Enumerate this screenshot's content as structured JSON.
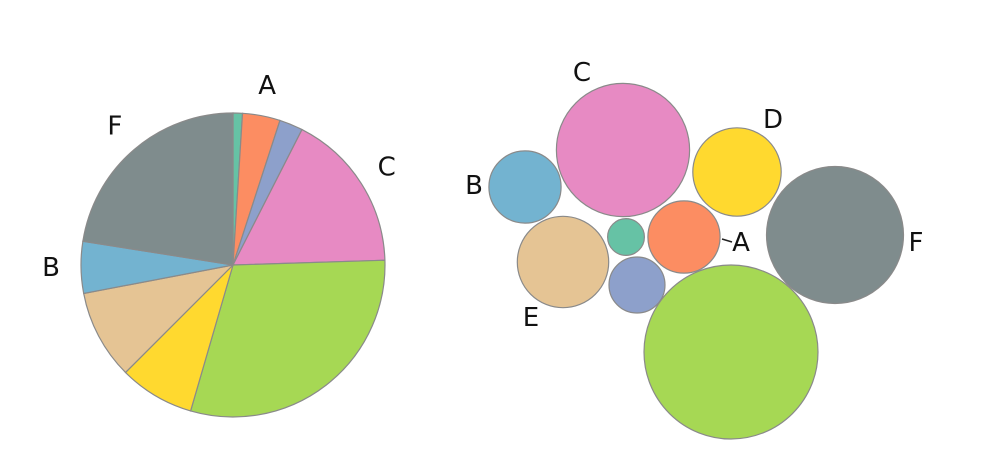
{
  "chart_data": [
    {
      "type": "pie",
      "start_angle_deg": 0,
      "direction": "clockwise",
      "slices": [
        {
          "label": "",
          "value": 1.0,
          "color": "#66c2a5"
        },
        {
          "label": "A",
          "value": 4.0,
          "color": "#fc8d62"
        },
        {
          "label": "",
          "value": 2.5,
          "color": "#8da0cb"
        },
        {
          "label": "C",
          "value": 17.0,
          "color": "#e78ac3"
        },
        {
          "label": "",
          "value": 30.0,
          "color": "#a6d854"
        },
        {
          "label": "",
          "value": 8.0,
          "color": "#ffd92f"
        },
        {
          "label": "",
          "value": 9.5,
          "color": "#e5c494"
        },
        {
          "label": "B",
          "value": 5.5,
          "color": "#73b3d0"
        },
        {
          "label": "F",
          "value": 22.5,
          "color": "#7f8c8d"
        }
      ]
    },
    {
      "type": "bubble",
      "bubbles": [
        {
          "label": "C",
          "value": 17.0,
          "color": "#e78ac3"
        },
        {
          "label": "D",
          "value": 7.5,
          "color": "#ffd92f"
        },
        {
          "label": "B",
          "value": 5.0,
          "color": "#73b3d0"
        },
        {
          "label": "",
          "value": 1.3,
          "color": "#66c2a5"
        },
        {
          "label": "A",
          "value": 5.0,
          "color": "#fc8d62"
        },
        {
          "label": "E",
          "value": 8.0,
          "color": "#e5c494"
        },
        {
          "label": "",
          "value": 3.0,
          "color": "#8da0cb"
        },
        {
          "label": "F",
          "value": 18.0,
          "color": "#7f8c8d"
        },
        {
          "label": "",
          "value": 29.0,
          "color": "#a6d854"
        }
      ]
    }
  ]
}
